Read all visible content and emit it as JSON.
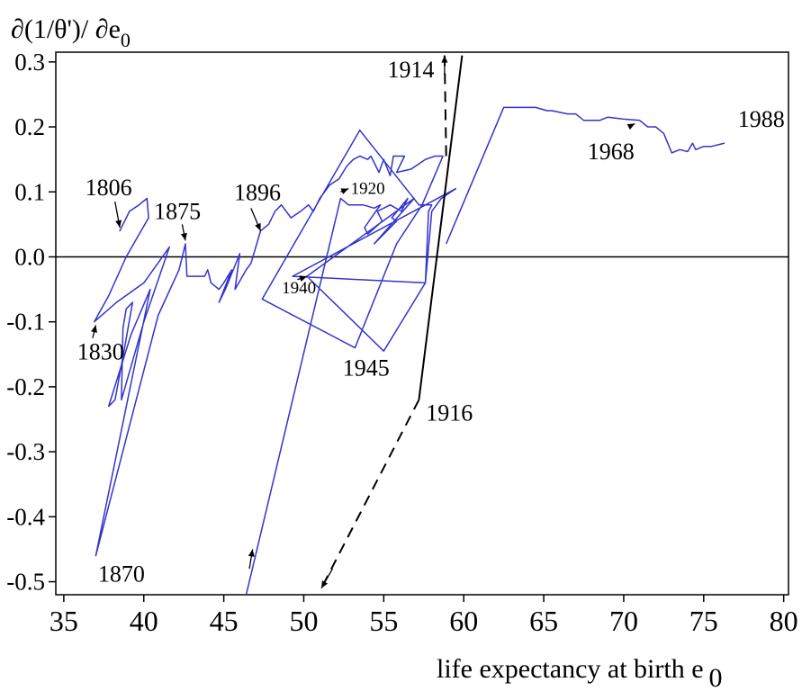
{
  "chart_data": {
    "type": "line",
    "ylabel": "∂(1/θ')/ ∂e",
    "ylabel_subscript": "0",
    "xlabel": "life expectancy at birth e",
    "xlabel_subscript": "0",
    "xlim": [
      34.5,
      80.3
    ],
    "ylim": [
      -0.52,
      0.315
    ],
    "x_ticks": [
      35,
      40,
      45,
      50,
      55,
      60,
      65,
      70,
      75,
      80
    ],
    "x_tick_labels": [
      "35",
      "40",
      "45",
      "50",
      "55",
      "60",
      "65",
      "70",
      "75",
      "80"
    ],
    "y_ticks": [
      -0.5,
      -0.4,
      -0.3,
      -0.2,
      -0.1,
      0.0,
      0.1,
      0.2,
      0.3
    ],
    "y_tick_labels": [
      "-0.5",
      "-0.4",
      "-0.3",
      "-0.2",
      "-0.1",
      "0.0",
      "0.1",
      "0.2",
      "0.3"
    ],
    "reference_line_y": 0.0,
    "colors": {
      "series": "#3333cc",
      "black": "#000000"
    },
    "series": [
      {
        "color": "#3333cc",
        "style": "solid",
        "points": [
          [
            38.7,
            0.05
          ],
          [
            38.5,
            0.04
          ],
          [
            39.1,
            0.07
          ],
          [
            39.7,
            0.08
          ],
          [
            40.2,
            0.09
          ],
          [
            40.3,
            0.06
          ],
          [
            39.6,
            0.03
          ],
          [
            38.9,
            0.0
          ],
          [
            37.8,
            -0.06
          ],
          [
            36.9,
            -0.1
          ],
          [
            38.3,
            -0.07
          ],
          [
            40.0,
            -0.04
          ],
          [
            41.6,
            0.015
          ],
          [
            40.0,
            -0.1
          ],
          [
            38.6,
            -0.22
          ],
          [
            38.7,
            -0.11
          ],
          [
            38.9,
            -0.08
          ],
          [
            39.3,
            -0.07
          ],
          [
            38.8,
            -0.14
          ],
          [
            38.2,
            -0.22
          ],
          [
            37.8,
            -0.23
          ],
          [
            39.2,
            -0.12
          ],
          [
            40.4,
            -0.05
          ],
          [
            37.0,
            -0.46
          ],
          [
            40.9,
            -0.09
          ],
          [
            42.2,
            -0.02
          ],
          [
            42.6,
            0.02
          ],
          [
            42.7,
            -0.03
          ],
          [
            43.8,
            -0.03
          ],
          [
            44.0,
            -0.02
          ],
          [
            44.2,
            -0.04
          ],
          [
            44.7,
            -0.05
          ],
          [
            45.0,
            -0.04
          ],
          [
            45.5,
            -0.02
          ],
          [
            44.7,
            -0.07
          ],
          [
            45.1,
            -0.05
          ],
          [
            46.0,
            0.005
          ],
          [
            45.7,
            -0.05
          ],
          [
            46.4,
            -0.02
          ],
          [
            46.7,
            -0.01
          ],
          [
            47.3,
            0.04
          ],
          [
            47.8,
            0.05
          ],
          [
            48.2,
            0.07
          ],
          [
            48.6,
            0.08
          ],
          [
            49.2,
            0.06
          ],
          [
            49.8,
            0.07
          ],
          [
            50.3,
            0.08
          ],
          [
            50.6,
            0.07
          ],
          [
            51.0,
            0.09
          ],
          [
            51.6,
            0.11
          ],
          [
            52.2,
            0.12
          ],
          [
            52.7,
            0.14
          ],
          [
            53.1,
            0.15
          ],
          [
            53.5,
            0.155
          ],
          [
            54.0,
            0.15
          ],
          [
            54.2,
            0.155
          ],
          [
            54.7,
            0.13
          ],
          [
            55.0,
            0.15
          ],
          [
            55.4,
            0.125
          ],
          [
            55.6,
            0.155
          ],
          [
            56.0,
            0.155
          ],
          [
            56.3,
            0.155
          ],
          [
            55.8,
            0.13
          ],
          [
            56.7,
            0.135
          ],
          [
            57.6,
            0.15
          ],
          [
            58.2,
            0.155
          ],
          [
            58.7,
            0.155
          ],
          [
            57.4,
            0.08
          ],
          [
            55.8,
            0.02
          ],
          [
            53.2,
            -0.14
          ],
          [
            47.4,
            -0.065
          ],
          [
            53.5,
            0.195
          ],
          [
            57.2,
            0.08
          ],
          [
            58.0,
            0.08
          ],
          [
            57.8,
            0.07
          ],
          [
            57.6,
            -0.04
          ],
          [
            49.3,
            -0.03
          ],
          [
            59.5,
            0.105
          ],
          [
            58.6,
            0.09
          ],
          [
            58.0,
            0.07
          ],
          [
            57.6,
            -0.04
          ],
          [
            55.0,
            -0.145
          ],
          [
            50.2,
            -0.03
          ],
          [
            56.9,
            0.09
          ],
          [
            54.4,
            0.02
          ],
          [
            55.8,
            0.055
          ],
          [
            55.5,
            0.06
          ],
          [
            56.5,
            0.09
          ],
          [
            56.1,
            0.07
          ],
          [
            55.4,
            0.08
          ],
          [
            54.6,
            0.07
          ],
          [
            54.9,
            0.055
          ],
          [
            54.0,
            0.035
          ],
          [
            53.8,
            0.045
          ],
          [
            54.5,
            0.07
          ],
          [
            54.8,
            0.08
          ],
          [
            54.4,
            0.075
          ],
          [
            53.7,
            0.08
          ],
          [
            52.8,
            0.08
          ],
          [
            52.3,
            0.09
          ],
          [
            46.4,
            -0.52
          ]
        ]
      },
      {
        "color": "#3333cc",
        "style": "solid",
        "points": [
          [
            58.9,
            0.02
          ],
          [
            62.5,
            0.23
          ],
          [
            63.5,
            0.23
          ],
          [
            64.5,
            0.23
          ],
          [
            65.2,
            0.225
          ],
          [
            65.5,
            0.225
          ],
          [
            66.5,
            0.22
          ],
          [
            67.0,
            0.22
          ],
          [
            67.5,
            0.21
          ],
          [
            68.5,
            0.21
          ],
          [
            69.0,
            0.215
          ],
          [
            70.0,
            0.212
          ],
          [
            71.0,
            0.21
          ],
          [
            71.5,
            0.2
          ],
          [
            72.0,
            0.2
          ],
          [
            72.5,
            0.19
          ],
          [
            73.0,
            0.16
          ],
          [
            73.5,
            0.165
          ],
          [
            74.0,
            0.162
          ],
          [
            74.3,
            0.175
          ],
          [
            74.5,
            0.165
          ],
          [
            75.0,
            0.17
          ],
          [
            75.5,
            0.17
          ],
          [
            76.3,
            0.175
          ]
        ]
      },
      {
        "color": "#000000",
        "style": "solid",
        "points": [
          [
            57.2,
            -0.22
          ],
          [
            59.9,
            0.31
          ]
        ]
      },
      {
        "color": "#000000",
        "style": "dashed",
        "points": [
          [
            57.2,
            -0.22
          ],
          [
            51.1,
            -0.51
          ]
        ]
      },
      {
        "color": "#000000",
        "style": "dashed",
        "points": [
          [
            58.9,
            0.155
          ],
          [
            58.8,
            0.31
          ]
        ]
      }
    ],
    "arrows": [
      {
        "from": [
          58.8,
          0.28
        ],
        "to": [
          58.8,
          0.31
        ],
        "color": "#000000"
      },
      {
        "from": [
          51.8,
          -0.48
        ],
        "to": [
          51.1,
          -0.51
        ],
        "color": "#000000"
      },
      {
        "from": [
          46.6,
          -0.48
        ],
        "to": [
          46.8,
          -0.45
        ],
        "color": "#000000"
      },
      {
        "from": [
          38.2,
          0.085
        ],
        "to": [
          38.5,
          0.045
        ],
        "color": "#000000"
      },
      {
        "from": [
          42.4,
          0.05
        ],
        "to": [
          42.6,
          0.025
        ],
        "color": "#000000"
      },
      {
        "from": [
          46.7,
          0.075
        ],
        "to": [
          47.3,
          0.04
        ],
        "color": "#000000"
      },
      {
        "from": [
          52.3,
          0.1
        ],
        "to": [
          52.8,
          0.105
        ],
        "color": "#000000"
      },
      {
        "from": [
          49.6,
          -0.035
        ],
        "to": [
          50.2,
          -0.03
        ],
        "color": "#000000"
      },
      {
        "from": [
          36.8,
          -0.125
        ],
        "to": [
          37.0,
          -0.105
        ],
        "color": "#000000"
      },
      {
        "from": [
          70.3,
          0.2
        ],
        "to": [
          70.7,
          0.205
        ],
        "color": "#000000"
      }
    ],
    "annotations": [
      {
        "text": "1806",
        "x": 37.8,
        "y": 0.095,
        "size": "large"
      },
      {
        "text": "1875",
        "x": 42.1,
        "y": 0.058,
        "size": "large"
      },
      {
        "text": "1896",
        "x": 47.1,
        "y": 0.087,
        "size": "large"
      },
      {
        "text": "1920",
        "x": 54.0,
        "y": 0.097,
        "size": "small"
      },
      {
        "text": "1830",
        "x": 37.3,
        "y": -0.158,
        "size": "large"
      },
      {
        "text": "1940",
        "x": 49.7,
        "y": -0.056,
        "size": "small"
      },
      {
        "text": "1945",
        "x": 53.9,
        "y": -0.183,
        "size": "large"
      },
      {
        "text": "1914",
        "x": 56.7,
        "y": 0.276,
        "size": "large"
      },
      {
        "text": "1916",
        "x": 59.1,
        "y": -0.252,
        "size": "large"
      },
      {
        "text": "1968",
        "x": 69.2,
        "y": 0.15,
        "size": "large"
      },
      {
        "text": "1988",
        "x": 78.6,
        "y": 0.2,
        "size": "large"
      },
      {
        "text": "1870",
        "x": 38.6,
        "y": -0.5,
        "size": "large"
      }
    ],
    "grid": false,
    "legend": "none"
  }
}
